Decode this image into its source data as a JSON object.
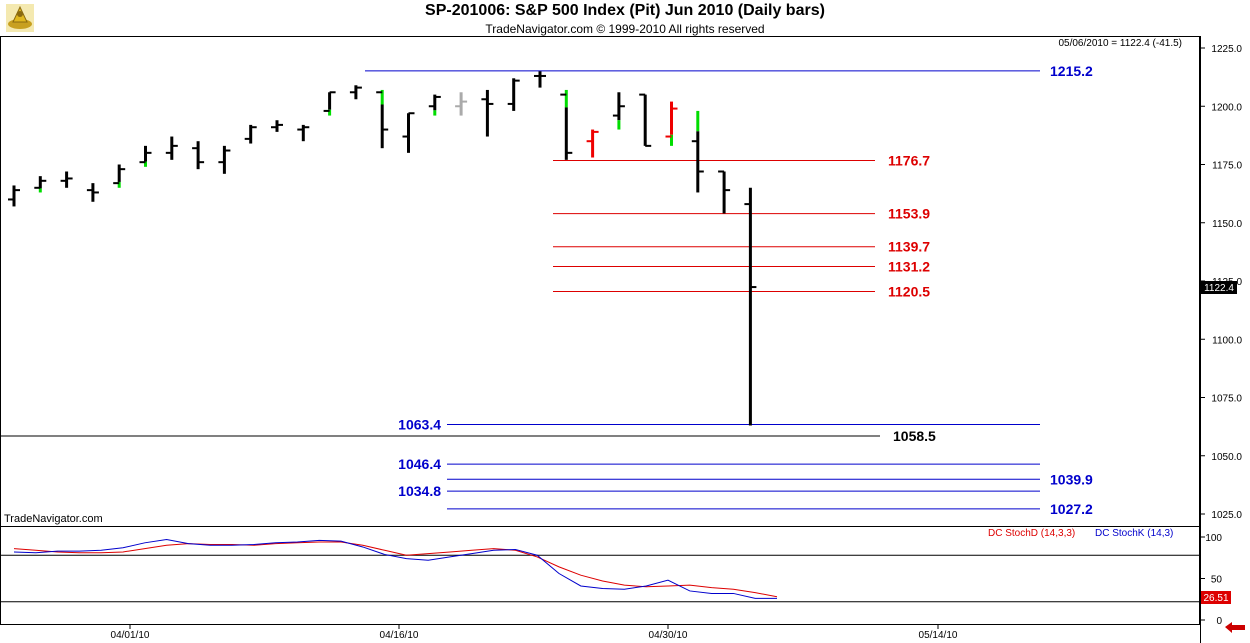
{
  "header": {
    "title": "SP-201006:  S&P 500 Index (Pit) Jun 2010  (Daily bars)",
    "subtitle": "TradeNavigator.com © 1999-2010 All rights reserved"
  },
  "watermark": "TradeNavigator.com",
  "quote": "05/06/2010 = 1122.4 (-41.5)",
  "last_price_label": "1122.4",
  "stoch_last_label": "26.51",
  "colors": {
    "bar": "#000000",
    "up_bar": "#00dd00",
    "down_bar": "#ee0000",
    "gray_bar": "#aaaaaa",
    "blue_level": "#0000cc",
    "red_level": "#dd0000",
    "stoch_d": "#dd0000",
    "stoch_k": "#0000cc"
  },
  "chart_data": [
    {
      "type": "ohlc",
      "title": "SP-201006:  S&P 500 Index (Pit) Jun 2010  (Daily bars)",
      "y_ticks": [
        "1225.0",
        "1200.0",
        "1175.0",
        "1150.0",
        "1125.0",
        "1100.0",
        "1075.0",
        "1050.0",
        "1025.0"
      ],
      "ylim": [
        1020,
        1230
      ],
      "x_tick_labels": [
        "04/01/10",
        "04/16/10",
        "04/30/10",
        "05/14/10"
      ],
      "bars": [
        {
          "o": 1160,
          "h": 1166,
          "l": 1157,
          "c": 1164,
          "col": "k"
        },
        {
          "o": 1165,
          "h": 1170,
          "l": 1163,
          "c": 1168,
          "col": "k",
          "lo_col": "g"
        },
        {
          "o": 1168,
          "h": 1172,
          "l": 1165,
          "c": 1169,
          "col": "k"
        },
        {
          "o": 1164,
          "h": 1167,
          "l": 1159,
          "c": 1163,
          "col": "k"
        },
        {
          "o": 1167,
          "h": 1175,
          "l": 1165,
          "c": 1173,
          "col": "k",
          "lo_col": "g"
        },
        {
          "o": 1176,
          "h": 1183,
          "l": 1174,
          "c": 1180,
          "col": "k",
          "lo_col": "g"
        },
        {
          "o": 1180,
          "h": 1187,
          "l": 1177,
          "c": 1183,
          "col": "k"
        },
        {
          "o": 1182,
          "h": 1185,
          "l": 1173,
          "c": 1176,
          "col": "k"
        },
        {
          "o": 1176,
          "h": 1183,
          "l": 1171,
          "c": 1181,
          "col": "k"
        },
        {
          "o": 1186,
          "h": 1192,
          "l": 1184,
          "c": 1191,
          "col": "k"
        },
        {
          "o": 1191,
          "h": 1194,
          "l": 1189,
          "c": 1192,
          "col": "k"
        },
        {
          "o": 1190,
          "h": 1192,
          "l": 1185,
          "c": 1191,
          "col": "k"
        },
        {
          "o": 1198,
          "h": 1206,
          "l": 1196,
          "c": 1206,
          "col": "k",
          "lo_col": "g"
        },
        {
          "o": 1206,
          "h": 1209,
          "l": 1203,
          "c": 1208,
          "col": "k"
        },
        {
          "o": 1206,
          "h": 1207,
          "l": 1182,
          "c": 1190,
          "col": "k",
          "hi_col": "g"
        },
        {
          "o": 1187,
          "h": 1197,
          "l": 1180,
          "c": 1197,
          "col": "k"
        },
        {
          "o": 1200,
          "h": 1205,
          "l": 1196,
          "c": 1204,
          "col": "k",
          "lo_col": "g"
        },
        {
          "o": 1200,
          "h": 1206,
          "l": 1196,
          "c": 1202,
          "col": "gr"
        },
        {
          "o": 1203,
          "h": 1207,
          "l": 1187,
          "c": 1201,
          "col": "k"
        },
        {
          "o": 1201,
          "h": 1212,
          "l": 1198,
          "c": 1211,
          "col": "k"
        },
        {
          "o": 1213,
          "h": 1215,
          "l": 1208,
          "c": 1213,
          "col": "k"
        },
        {
          "o": 1205,
          "h": 1207,
          "l": 1177,
          "c": 1180,
          "col": "k",
          "hi_col": "g"
        },
        {
          "o": 1185,
          "h": 1190,
          "l": 1178,
          "c": 1189,
          "col": "r"
        },
        {
          "o": 1196,
          "h": 1206,
          "l": 1190,
          "c": 1200,
          "col": "k",
          "lo_col": "g"
        },
        {
          "o": 1205,
          "h": 1205,
          "l": 1183,
          "c": 1183,
          "col": "k"
        },
        {
          "o": 1187,
          "h": 1202,
          "l": 1183,
          "c": 1199,
          "col": "r",
          "lo_col": "g"
        },
        {
          "o": 1185,
          "h": 1198,
          "l": 1163,
          "c": 1172,
          "col": "k",
          "hi_col": "g"
        },
        {
          "o": 1172,
          "h": 1172,
          "l": 1154,
          "c": 1164,
          "col": "k"
        },
        {
          "o": 1158,
          "h": 1165,
          "l": 1063,
          "c": 1122.4,
          "col": "k"
        }
      ],
      "levels": [
        {
          "label": "1215.2",
          "value": 1215.2,
          "color": "blue",
          "x0": 365,
          "x1": 1040,
          "label_side": "right"
        },
        {
          "label": "1176.7",
          "value": 1176.7,
          "color": "red",
          "x0": 553,
          "x1": 875,
          "label_side": "right"
        },
        {
          "label": "1153.9",
          "value": 1153.9,
          "color": "red",
          "x0": 553,
          "x1": 875,
          "label_side": "right"
        },
        {
          "label": "1139.7",
          "value": 1139.7,
          "color": "red",
          "x0": 553,
          "x1": 875,
          "label_side": "right"
        },
        {
          "label": "1131.2",
          "value": 1131.2,
          "color": "red",
          "x0": 553,
          "x1": 875,
          "label_side": "right"
        },
        {
          "label": "1120.5",
          "value": 1120.5,
          "color": "red",
          "x0": 553,
          "x1": 875,
          "label_side": "right"
        },
        {
          "label": "1063.4",
          "value": 1063.4,
          "color": "blue",
          "x0": 447,
          "x1": 1040,
          "label_side": "left"
        },
        {
          "label": "1058.5",
          "value": 1058.5,
          "color": "black",
          "x0": 0,
          "x1": 880,
          "label_side": "right"
        },
        {
          "label": "1046.4",
          "value": 1046.4,
          "color": "blue",
          "x0": 447,
          "x1": 1040,
          "label_side": "left"
        },
        {
          "label": "1039.9",
          "value": 1039.9,
          "color": "blue",
          "x0": 447,
          "x1": 1040,
          "label_side": "right"
        },
        {
          "label": "1034.8",
          "value": 1034.8,
          "color": "blue",
          "x0": 447,
          "x1": 1040,
          "label_side": "left"
        },
        {
          "label": "1027.2",
          "value": 1027.2,
          "color": "blue",
          "x0": 447,
          "x1": 1040,
          "label_side": "right"
        }
      ]
    },
    {
      "type": "line",
      "title": "",
      "y_ticks": [
        "100",
        "50",
        "0"
      ],
      "ylim": [
        0,
        105
      ],
      "ref_lines": [
        78,
        22
      ],
      "series": [
        {
          "name": "DC StochD (14,3,3)",
          "color": "red",
          "values": [
            86,
            84,
            82,
            81,
            81,
            82,
            86,
            90,
            92,
            91,
            91,
            90,
            92,
            93,
            94,
            94,
            90,
            84,
            78,
            80,
            82,
            84,
            86,
            84,
            76,
            64,
            54,
            47,
            42,
            40,
            41,
            42,
            39,
            37,
            33,
            28
          ]
        },
        {
          "name": "DC StochK (14,3,3)",
          "color": "blue",
          "values": [
            82,
            81,
            83,
            83,
            84,
            87,
            93,
            97,
            92,
            90,
            90,
            91,
            93,
            94,
            96,
            95,
            88,
            79,
            74,
            72,
            76,
            80,
            84,
            85,
            78,
            56,
            41,
            38,
            37,
            41,
            48,
            35,
            32,
            32,
            26,
            26
          ]
        }
      ]
    }
  ]
}
